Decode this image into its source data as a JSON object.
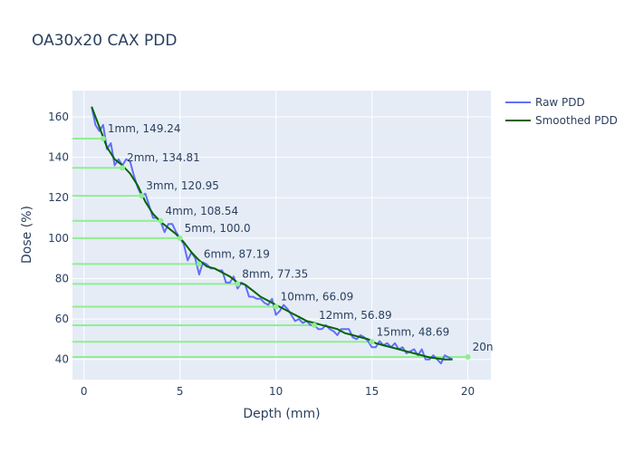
{
  "chart_data": {
    "type": "line",
    "title": "OA30x20 CAX PDD",
    "xlabel": "Depth (mm)",
    "ylabel": "Dose (%)",
    "xlim": [
      -0.6,
      21.2
    ],
    "ylim": [
      30,
      173
    ],
    "x_ticks": [
      0,
      5,
      10,
      15,
      20
    ],
    "y_ticks": [
      40,
      60,
      80,
      100,
      120,
      140,
      160
    ],
    "grid": true,
    "legend_position": "top-right",
    "colors": {
      "plot_bg": "#e5ecf6",
      "grid": "#ffffff",
      "raw": "#636efa",
      "smoothed": "#006400",
      "marker_line": "#90ee90",
      "marker_point": "#90ee90",
      "text": "#2a3f5f"
    },
    "series": [
      {
        "name": "Raw PDD",
        "x": [
          0.4,
          0.6,
          0.8,
          1.0,
          1.2,
          1.4,
          1.6,
          1.8,
          2.0,
          2.2,
          2.4,
          2.6,
          2.8,
          3.0,
          3.2,
          3.4,
          3.6,
          3.8,
          4.0,
          4.2,
          4.4,
          4.6,
          4.8,
          5.0,
          5.2,
          5.4,
          5.6,
          5.8,
          6.0,
          6.2,
          6.4,
          6.6,
          6.8,
          7.0,
          7.2,
          7.4,
          7.6,
          7.8,
          8.0,
          8.2,
          8.4,
          8.6,
          8.8,
          9.0,
          9.2,
          9.4,
          9.6,
          9.8,
          10.0,
          10.2,
          10.4,
          10.6,
          10.8,
          11.0,
          11.2,
          11.4,
          11.6,
          11.8,
          12.0,
          12.2,
          12.4,
          12.6,
          12.8,
          13.0,
          13.2,
          13.4,
          13.6,
          13.8,
          14.0,
          14.2,
          14.4,
          14.6,
          14.8,
          15.0,
          15.2,
          15.4,
          15.6,
          15.8,
          16.0,
          16.2,
          16.4,
          16.6,
          16.8,
          17.0,
          17.2,
          17.4,
          17.6,
          17.8,
          18.0,
          18.2,
          18.4,
          18.6,
          18.8,
          19.0,
          19.2
        ],
        "y": [
          165,
          156,
          153,
          156,
          144,
          147,
          136,
          139,
          136,
          139,
          138,
          131,
          125,
          121,
          122,
          116,
          110,
          110,
          108,
          103,
          107,
          107,
          103,
          100,
          97,
          89,
          93,
          90,
          82,
          88,
          87,
          85,
          85,
          84,
          84,
          78,
          78,
          81,
          75,
          78,
          77,
          71,
          71,
          70,
          70,
          68,
          67,
          70,
          62,
          64,
          67,
          65,
          62,
          59,
          60,
          58,
          59,
          57,
          57,
          55,
          55,
          57,
          55,
          54,
          52,
          55,
          55,
          55,
          51,
          50,
          52,
          51,
          49,
          46,
          46,
          49,
          47,
          48,
          46,
          48,
          45,
          46,
          43,
          44,
          45,
          42,
          45,
          40,
          40,
          42,
          40,
          38,
          42,
          41,
          40
        ]
      },
      {
        "name": "Smoothed PDD",
        "x": [
          0.4,
          0.8,
          1.2,
          1.6,
          2.0,
          2.4,
          2.8,
          3.2,
          3.6,
          4.0,
          4.4,
          4.8,
          5.2,
          5.6,
          6.0,
          6.4,
          6.8,
          7.2,
          7.6,
          8.0,
          8.4,
          8.8,
          9.2,
          9.6,
          10.0,
          10.4,
          10.8,
          11.2,
          11.6,
          12.0,
          12.4,
          12.8,
          13.2,
          13.6,
          14.0,
          14.4,
          14.8,
          15.2,
          15.6,
          16.0,
          16.4,
          16.8,
          17.2,
          17.6,
          18.0,
          18.4,
          18.8,
          19.2
        ],
        "y": [
          165,
          155,
          145,
          139,
          136,
          132,
          126,
          118,
          112,
          108,
          105,
          102,
          98,
          93,
          89,
          86,
          85,
          83,
          81,
          78,
          77,
          74,
          71,
          69,
          67,
          65,
          63,
          61,
          59,
          58,
          57,
          56,
          55,
          53,
          52,
          51,
          50,
          48,
          47,
          46,
          45,
          44,
          43,
          42,
          41,
          40.5,
          40,
          40
        ]
      }
    ],
    "markers": [
      {
        "depth": 1,
        "dose": 149.24,
        "label": "1mm, 149.24"
      },
      {
        "depth": 2,
        "dose": 134.81,
        "label": "2mm, 134.81"
      },
      {
        "depth": 3,
        "dose": 120.95,
        "label": "3mm, 120.95"
      },
      {
        "depth": 4,
        "dose": 108.54,
        "label": "4mm, 108.54"
      },
      {
        "depth": 5,
        "dose": 100.0,
        "label": "5mm, 100.0"
      },
      {
        "depth": 6,
        "dose": 87.19,
        "label": "6mm, 87.19"
      },
      {
        "depth": 8,
        "dose": 77.35,
        "label": "8mm, 77.35"
      },
      {
        "depth": 10,
        "dose": 66.09,
        "label": "10mm, 66.09"
      },
      {
        "depth": 12,
        "dose": 56.89,
        "label": "12mm, 56.89"
      },
      {
        "depth": 15,
        "dose": 48.69,
        "label": "15mm, 48.69"
      },
      {
        "depth": 20,
        "dose": 41.2,
        "label": "20n"
      }
    ]
  }
}
